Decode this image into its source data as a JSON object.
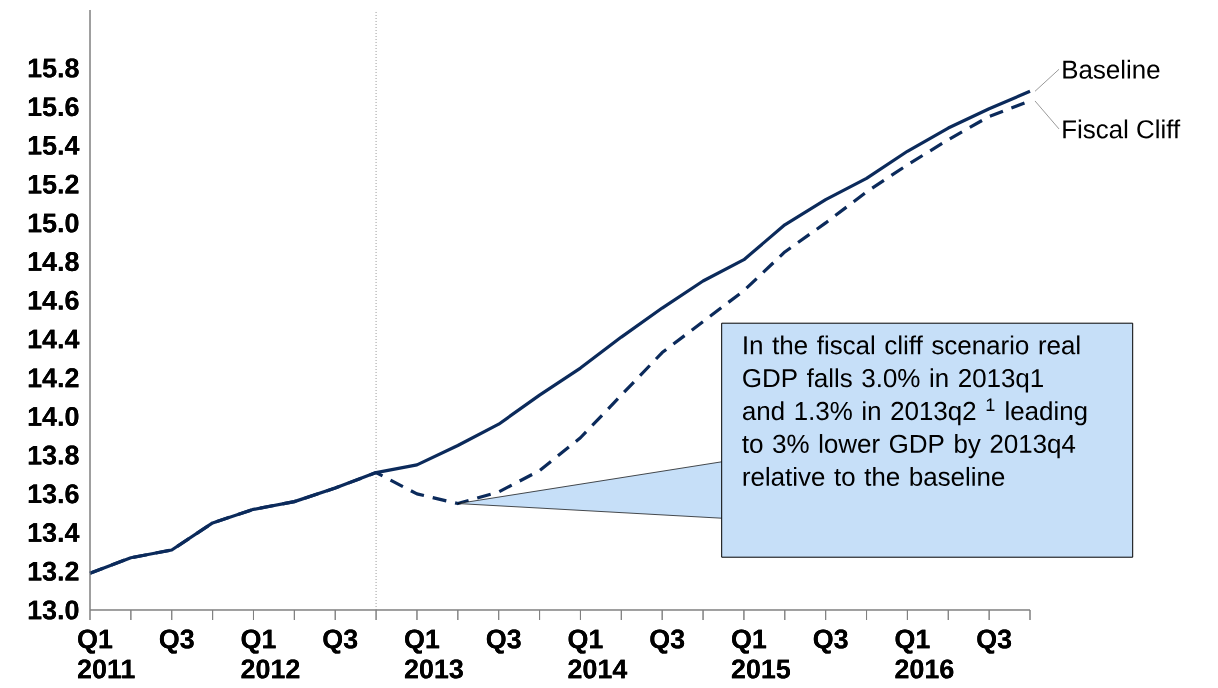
{
  "chart_data": {
    "type": "line",
    "categories": [
      "Q1 2011",
      null,
      "Q3",
      null,
      "Q1 2012",
      null,
      "Q3",
      null,
      "Q1 2013",
      null,
      "Q3",
      null,
      "Q1 2014",
      null,
      "Q3",
      null,
      "Q1 2015",
      null,
      "Q3",
      null,
      "Q1 2016",
      null,
      "Q3",
      null
    ],
    "series": [
      {
        "name": "Baseline",
        "color": "#0b2a5b",
        "line_style": "solid",
        "values": [
          13.19,
          13.27,
          13.31,
          13.45,
          13.52,
          13.56,
          13.63,
          13.71,
          13.75,
          13.85,
          13.96,
          14.11,
          14.25,
          14.41,
          14.56,
          14.7,
          14.81,
          14.99,
          15.12,
          15.23,
          15.37,
          15.49,
          15.59,
          15.68
        ]
      },
      {
        "name": "Fiscal Cliff",
        "color": "#0b2a5b",
        "line_style": "dashed",
        "values": [
          13.19,
          13.27,
          13.31,
          13.45,
          13.52,
          13.56,
          13.63,
          13.71,
          13.6,
          13.55,
          13.61,
          13.72,
          13.89,
          14.11,
          14.33,
          14.49,
          14.65,
          14.85,
          15.0,
          15.16,
          15.3,
          15.43,
          15.55,
          15.63
        ]
      }
    ],
    "ylim": [
      13.0,
      16.1
    ],
    "yticks": [
      {
        "value": 13.0,
        "label": "13.0"
      },
      {
        "value": 13.2,
        "label": "13.2"
      },
      {
        "value": 13.4,
        "label": "13.4"
      },
      {
        "value": 13.6,
        "label": "13.6"
      },
      {
        "value": 13.8,
        "label": "13.8"
      },
      {
        "value": 14.0,
        "label": "14.0"
      },
      {
        "value": 14.2,
        "label": "14.2"
      },
      {
        "value": 14.4,
        "label": "14.4"
      },
      {
        "value": 14.6,
        "label": "14.6"
      },
      {
        "value": 14.8,
        "label": "14.8"
      },
      {
        "value": 15.0,
        "label": "15.0"
      },
      {
        "value": 15.2,
        "label": "15.2"
      },
      {
        "value": 15.4,
        "label": "15.4"
      },
      {
        "value": 15.6,
        "label": "15.6"
      },
      {
        "value": 15.8,
        "label": "15.8"
      }
    ],
    "annotations": [
      "In the fiscal cliff scenario real GDP falls 3.0% in 2013q1 and 1.3% in 2013q2 $^{1}$ leading to 3% lower GDP by 2013q4 relative to the baseline"
    ],
    "grid": false
  }
}
